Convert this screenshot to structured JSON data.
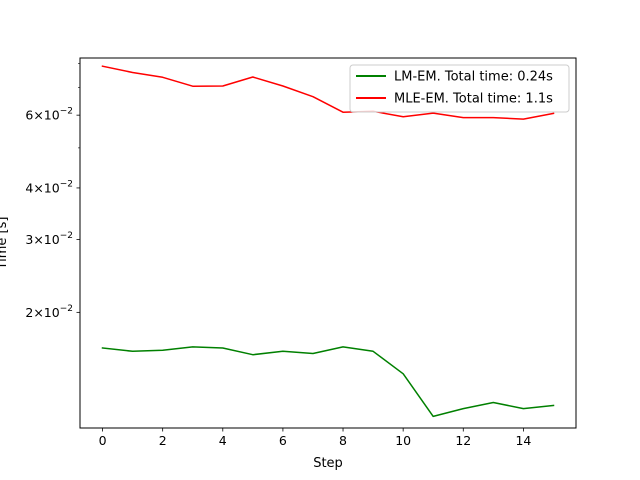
{
  "chart_data": {
    "type": "line",
    "title": "",
    "xlabel": "Step",
    "ylabel": "Time [s]",
    "yscale": "log",
    "xlim": [
      -0.75,
      15.75
    ],
    "ylim": [
      0.0105,
      0.0825
    ],
    "x": [
      0,
      1,
      2,
      3,
      4,
      5,
      6,
      7,
      8,
      9,
      10,
      11,
      12,
      13,
      14,
      15
    ],
    "x_ticks": [
      0,
      2,
      4,
      6,
      8,
      10,
      12,
      14
    ],
    "x_tick_labels": [
      "0",
      "2",
      "4",
      "6",
      "8",
      "10",
      "12",
      "14"
    ],
    "y_major_ticks": [
      {
        "value": 0.02,
        "mantissa": "2",
        "exponent": "−2"
      },
      {
        "value": 0.03,
        "mantissa": "3",
        "exponent": "−2"
      },
      {
        "value": 0.04,
        "mantissa": "4",
        "exponent": "−2"
      },
      {
        "value": 0.06,
        "mantissa": "6",
        "exponent": "−2"
      }
    ],
    "y_minor_ticks": [
      0.05,
      0.07,
      0.08
    ],
    "tick_base": "10",
    "tick_times": "×",
    "grid": false,
    "legend_position": "upper right",
    "series": [
      {
        "name": "LM-EM. Total time: 0.24s",
        "color": "#008000",
        "values": [
          0.0164,
          0.0161,
          0.0162,
          0.0165,
          0.0164,
          0.0158,
          0.0161,
          0.0159,
          0.0165,
          0.0161,
          0.0142,
          0.0112,
          0.0117,
          0.0121,
          0.0117,
          0.0119
        ]
      },
      {
        "name": "MLE-EM. Total time: 1.1s",
        "color": "#ff0000",
        "values": [
          0.0788,
          0.0761,
          0.0741,
          0.0705,
          0.0706,
          0.0742,
          0.0706,
          0.0665,
          0.061,
          0.0613,
          0.0595,
          0.0607,
          0.0592,
          0.0592,
          0.0587,
          0.0606
        ]
      }
    ]
  }
}
